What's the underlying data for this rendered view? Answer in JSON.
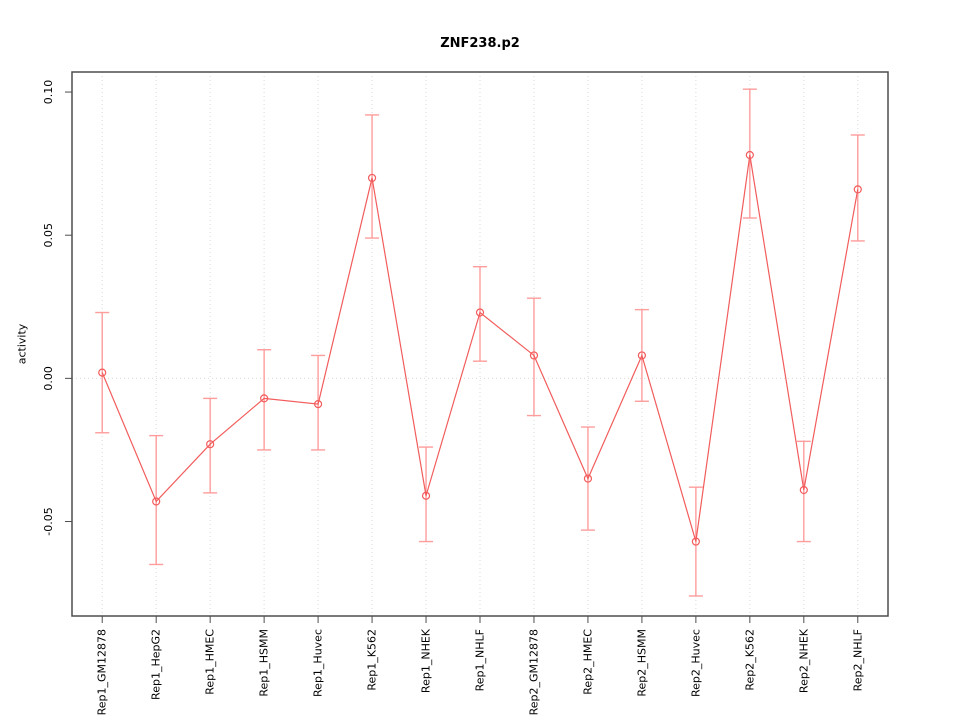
{
  "figure": {
    "title": "ZNF238.p2",
    "ylabel": "activity"
  },
  "chart_data": {
    "type": "line",
    "title": "ZNF238.p2",
    "xlabel": "",
    "ylabel": "activity",
    "legend": "none",
    "grid": "vertical dotted gridlines at each category plus dotted horizontal line at y=0",
    "categories": [
      "Rep1_GM12878",
      "Rep1_HepG2",
      "Rep1_HMEC",
      "Rep1_HSMM",
      "Rep1_Huvec",
      "Rep1_K562",
      "Rep1_NHEK",
      "Rep1_NHLF",
      "Rep2_GM12878",
      "Rep2_HMEC",
      "Rep2_HSMM",
      "Rep2_Huvec",
      "Rep2_K562",
      "Rep2_NHEK",
      "Rep2_NHLF"
    ],
    "series": [
      {
        "name": "activity",
        "values": [
          0.002,
          -0.043,
          -0.023,
          -0.007,
          -0.009,
          0.07,
          -0.041,
          0.023,
          0.008,
          -0.035,
          0.008,
          -0.057,
          0.078,
          -0.039,
          0.066
        ],
        "error_low": [
          -0.019,
          -0.065,
          -0.04,
          -0.025,
          -0.025,
          0.049,
          -0.057,
          0.006,
          -0.013,
          -0.053,
          -0.008,
          -0.076,
          0.056,
          -0.057,
          0.048
        ],
        "error_high": [
          0.023,
          -0.02,
          -0.007,
          0.01,
          0.008,
          0.092,
          -0.024,
          0.039,
          0.028,
          -0.017,
          0.024,
          -0.038,
          0.101,
          -0.022,
          0.085
        ]
      }
    ],
    "ylim": [
      -0.083,
      0.107
    ],
    "yticks": [
      -0.05,
      0,
      0.05,
      0.1
    ],
    "ytick_labels": [
      "-0.05",
      "0.00",
      "0.05",
      "0.10"
    ],
    "colors": {
      "line": "#f25c5c",
      "error_bar": "#ff9c9c",
      "grid": "#d9d9d9",
      "box": "#4d4d4d",
      "text": "#000000"
    }
  }
}
